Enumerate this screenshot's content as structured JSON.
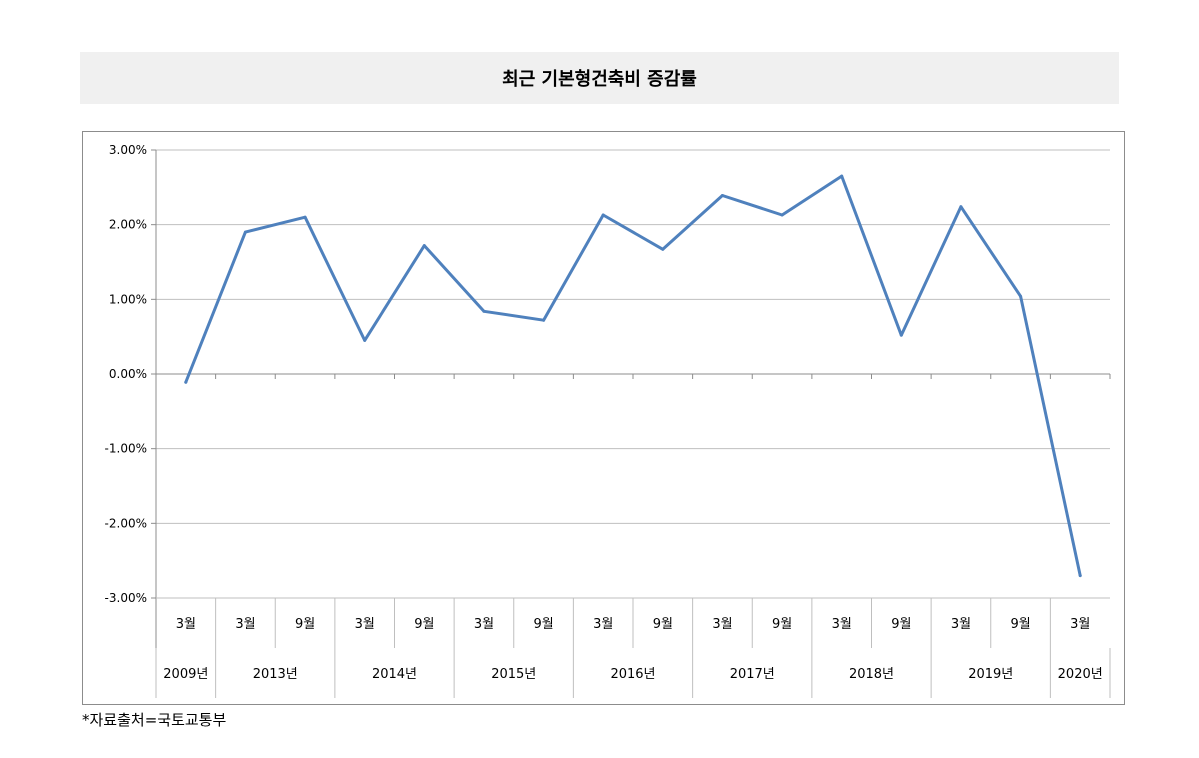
{
  "title": "최근 기본형건축비 증감률",
  "source": "*자료출처=국토교통부",
  "colors": {
    "line": "#4f81bd",
    "grid": "#bfbfbf",
    "axis": "#8c8c8c"
  },
  "chart_data": {
    "type": "line",
    "title": "최근 기본형건축비 증감률",
    "categories": [
      "3월",
      "3월",
      "9월",
      "3월",
      "9월",
      "3월",
      "9월",
      "3월",
      "9월",
      "3월",
      "9월",
      "3월",
      "9월",
      "3월",
      "9월",
      "3월"
    ],
    "year_groups": [
      {
        "label": "2009년",
        "span": 1
      },
      {
        "label": "2013년",
        "span": 2
      },
      {
        "label": "2014년",
        "span": 2
      },
      {
        "label": "2015년",
        "span": 2
      },
      {
        "label": "2016년",
        "span": 2
      },
      {
        "label": "2017년",
        "span": 2
      },
      {
        "label": "2018년",
        "span": 2
      },
      {
        "label": "2019년",
        "span": 2
      },
      {
        "label": "2020년",
        "span": 1
      }
    ],
    "series": [
      {
        "values": [
          -0.11,
          1.9,
          2.1,
          0.45,
          1.72,
          0.84,
          0.72,
          2.13,
          1.67,
          2.39,
          2.13,
          2.65,
          0.52,
          2.24,
          1.04,
          -2.7
        ]
      }
    ],
    "ylim": [
      -3.0,
      3.0
    ],
    "yticks": [
      3.0,
      2.0,
      1.0,
      0.0,
      -1.0,
      -2.0,
      -3.0
    ],
    "ytick_labels": [
      "3.00%",
      "2.00%",
      "1.00%",
      "0.00%",
      "-1.00%",
      "-2.00%",
      "-3.00%"
    ],
    "grid": true,
    "legend": "none"
  }
}
